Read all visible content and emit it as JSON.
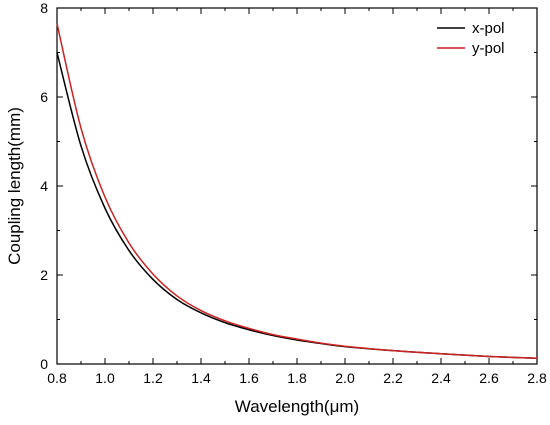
{
  "chart_data": {
    "type": "line",
    "xlabel": "Wavelength(μm)",
    "ylabel": "Coupling length(mm)",
    "xlim": [
      0.8,
      2.8
    ],
    "ylim": [
      0,
      8
    ],
    "x_ticks": [
      0.8,
      1.0,
      1.2,
      1.4,
      1.6,
      1.8,
      2.0,
      2.2,
      2.4,
      2.6,
      2.8
    ],
    "x_tick_labels": [
      "0.8",
      "1.0",
      "1.2",
      "1.4",
      "1.6",
      "1.8",
      "2.0",
      "2.2",
      "2.4",
      "2.6",
      "2.8"
    ],
    "y_ticks": [
      0,
      2,
      4,
      6,
      8
    ],
    "y_tick_labels": [
      "0",
      "2",
      "4",
      "6",
      "8"
    ],
    "grid": false,
    "legend_position": "top-right",
    "series": [
      {
        "name": "x-pol",
        "color": "#000000",
        "x": [
          0.8,
          0.9,
          1.0,
          1.1,
          1.2,
          1.3,
          1.4,
          1.5,
          1.6,
          1.7,
          1.8,
          1.9,
          2.0,
          2.2,
          2.4,
          2.6,
          2.8
        ],
        "y": [
          7.0,
          4.9,
          3.5,
          2.55,
          1.9,
          1.45,
          1.15,
          0.93,
          0.77,
          0.64,
          0.54,
          0.46,
          0.39,
          0.3,
          0.23,
          0.17,
          0.13
        ]
      },
      {
        "name": "y-pol",
        "color": "#cc2222",
        "x": [
          0.8,
          0.9,
          1.0,
          1.1,
          1.2,
          1.3,
          1.4,
          1.5,
          1.6,
          1.7,
          1.8,
          1.9,
          2.0,
          2.2,
          2.4,
          2.6,
          2.8
        ],
        "y": [
          7.65,
          5.3,
          3.75,
          2.72,
          2.02,
          1.53,
          1.2,
          0.97,
          0.8,
          0.66,
          0.56,
          0.47,
          0.4,
          0.3,
          0.23,
          0.17,
          0.13
        ]
      }
    ]
  }
}
